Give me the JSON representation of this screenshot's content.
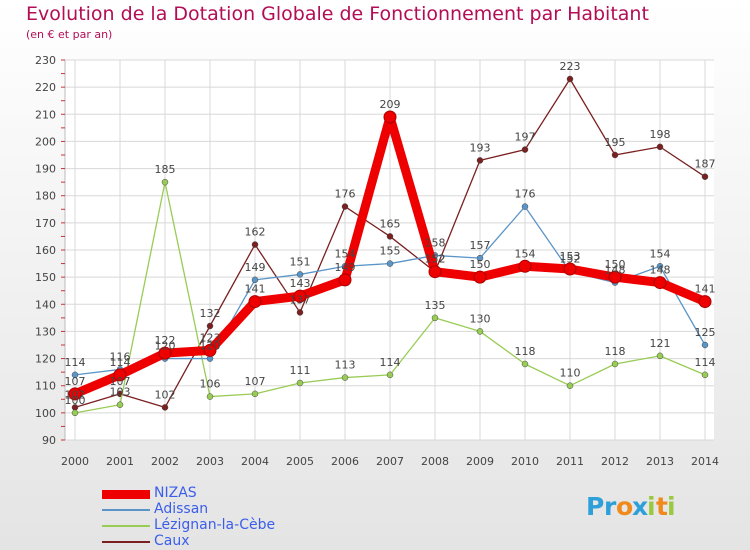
{
  "title": "Evolution de la Dotation Globale de Fonctionnement par Habitant",
  "subtitle": "(en € et par an)",
  "chart_data": {
    "type": "line",
    "x": [
      "2000",
      "2001",
      "2002",
      "2003",
      "2004",
      "2005",
      "2006",
      "2007",
      "2008",
      "2009",
      "2010",
      "2011",
      "2012",
      "2013",
      "2014"
    ],
    "ylim": [
      90,
      230
    ],
    "yticks": [
      90,
      100,
      110,
      120,
      130,
      140,
      150,
      160,
      170,
      180,
      190,
      200,
      210,
      220,
      230
    ],
    "grid": true,
    "legend_position": "bottom-left",
    "series": [
      {
        "name": "NIZAS",
        "color": "#ee0000",
        "values": [
          107,
          114,
          122,
          123,
          141,
          143,
          149,
          209,
          152,
          150,
          154,
          153,
          150,
          148,
          141
        ]
      },
      {
        "name": "Adissan",
        "color": "#5b95c8",
        "values": [
          114,
          116,
          120,
          120,
          149,
          151,
          154,
          155,
          158,
          157,
          176,
          152,
          148,
          154,
          125
        ]
      },
      {
        "name": "Lézignan-la-Cèbe",
        "color": "#99cc55",
        "values": [
          100,
          103,
          185,
          106,
          107,
          111,
          113,
          114,
          135,
          130,
          118,
          110,
          118,
          121,
          114
        ]
      },
      {
        "name": "Caux",
        "color": "#7a2020",
        "values": [
          102,
          107,
          102,
          132,
          162,
          137,
          176,
          165,
          152,
          193,
          197,
          223,
          195,
          198,
          187
        ]
      }
    ]
  },
  "logo": {
    "letters": [
      "P",
      "r",
      "o",
      "x",
      "i",
      "t",
      "i"
    ],
    "colors": [
      "#2d9fd9",
      "#2d9fd9",
      "#f08a1c",
      "#2d9fd9",
      "#9ac93f",
      "#f08a1c",
      "#9ac93f"
    ]
  }
}
